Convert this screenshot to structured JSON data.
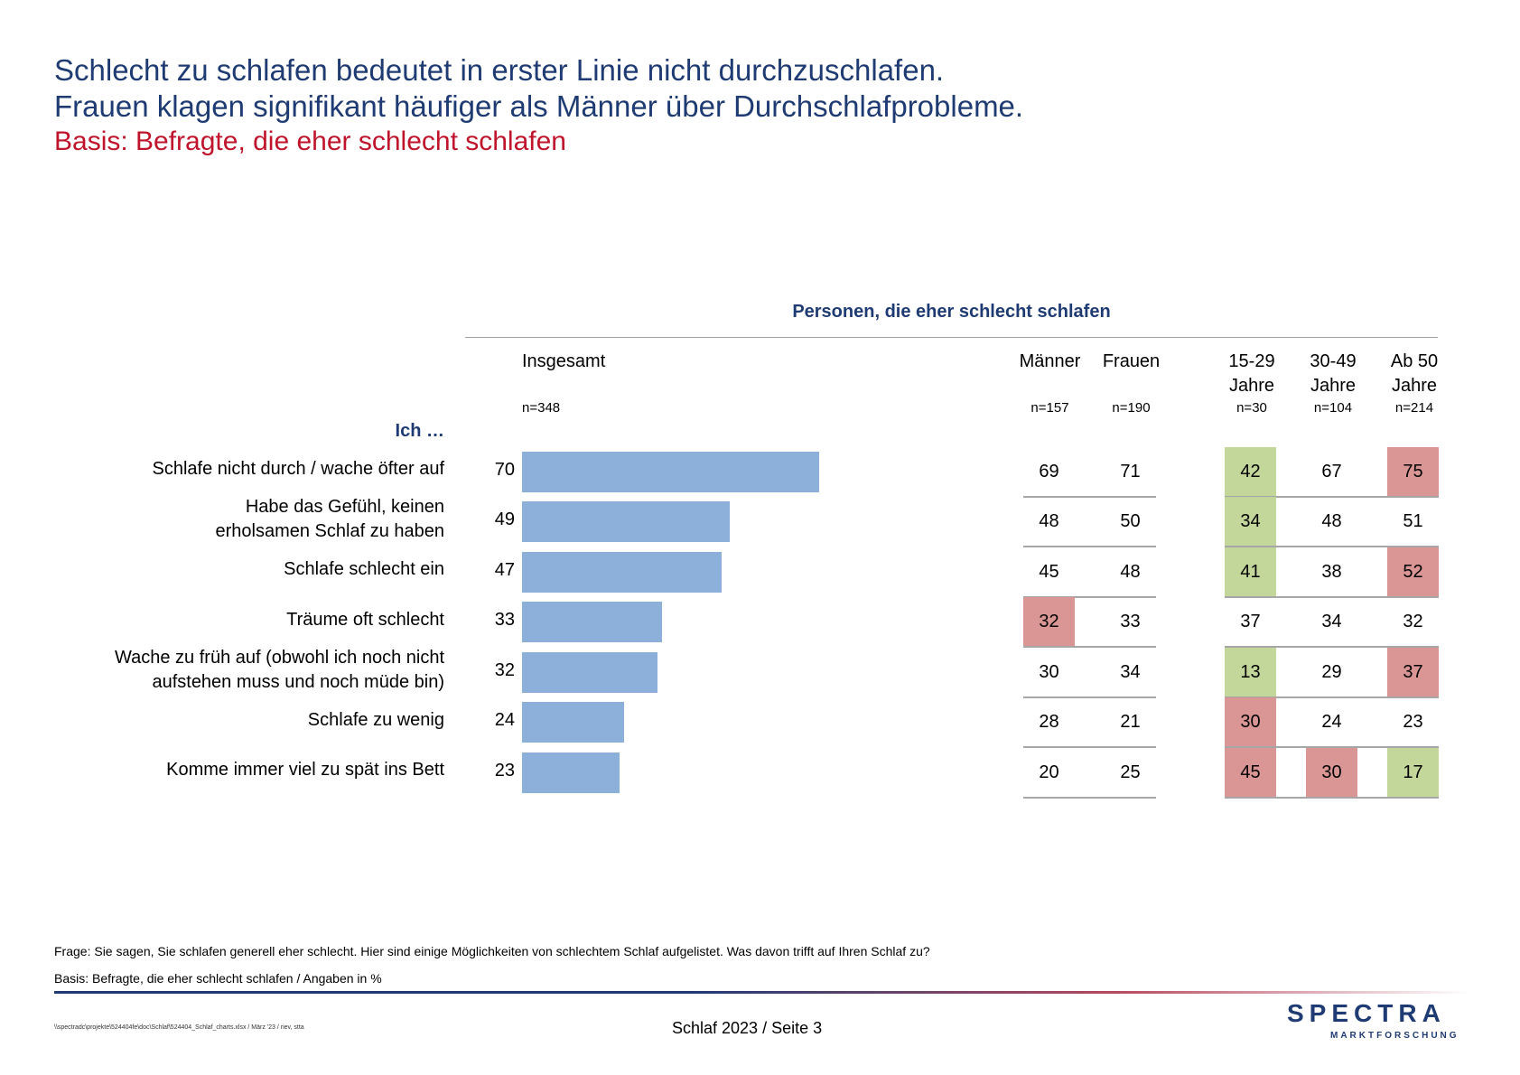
{
  "header": {
    "line1": "Schlecht zu schlafen bedeutet in erster Linie nicht durchzuschlafen.",
    "line2": "Frauen klagen signifikant häufiger als Männer über Durchschlafprobleme.",
    "basis": "Basis: Befragte, die eher schlecht schlafen"
  },
  "table": {
    "section_title": "Personen, die eher schlecht schlafen",
    "row_header": "Ich …",
    "columns": [
      {
        "label1": "Insgesamt",
        "label2": "",
        "n": "n=348"
      },
      {
        "label1": "Männer",
        "label2": "",
        "n": "n=157"
      },
      {
        "label1": "Frauen",
        "label2": "",
        "n": "n=190"
      },
      {
        "label1": "15-29",
        "label2": "Jahre",
        "n": "n=30"
      },
      {
        "label1": "30-49",
        "label2": "Jahre",
        "n": "n=104"
      },
      {
        "label1": "Ab 50",
        "label2": "Jahre",
        "n": "n=214"
      }
    ],
    "rows": [
      {
        "label": [
          "Schlafe nicht durch / wache öfter auf"
        ],
        "total": 70,
        "cells": [
          {
            "v": "69",
            "s": ""
          },
          {
            "v": "71",
            "s": ""
          },
          {
            "v": "42",
            "s": "green"
          },
          {
            "v": "67",
            "s": ""
          },
          {
            "v": "75",
            "s": "red"
          }
        ]
      },
      {
        "label": [
          "Habe das Gefühl, keinen",
          "erholsamen Schlaf zu haben"
        ],
        "total": 49,
        "cells": [
          {
            "v": "48",
            "s": ""
          },
          {
            "v": "50",
            "s": ""
          },
          {
            "v": "34",
            "s": "green"
          },
          {
            "v": "48",
            "s": ""
          },
          {
            "v": "51",
            "s": ""
          }
        ]
      },
      {
        "label": [
          "Schlafe schlecht ein"
        ],
        "total": 47,
        "cells": [
          {
            "v": "45",
            "s": ""
          },
          {
            "v": "48",
            "s": ""
          },
          {
            "v": "41",
            "s": "green"
          },
          {
            "v": "38",
            "s": ""
          },
          {
            "v": "52",
            "s": "red"
          }
        ]
      },
      {
        "label": [
          "Träume oft schlecht"
        ],
        "total": 33,
        "cells": [
          {
            "v": "32",
            "s": "red"
          },
          {
            "v": "33",
            "s": ""
          },
          {
            "v": "37",
            "s": ""
          },
          {
            "v": "34",
            "s": ""
          },
          {
            "v": "32",
            "s": ""
          }
        ]
      },
      {
        "label": [
          "Wache zu früh auf (obwohl ich noch nicht",
          "aufstehen muss und noch müde bin)"
        ],
        "total": 32,
        "cells": [
          {
            "v": "30",
            "s": ""
          },
          {
            "v": "34",
            "s": ""
          },
          {
            "v": "13",
            "s": "green"
          },
          {
            "v": "29",
            "s": ""
          },
          {
            "v": "37",
            "s": "red"
          }
        ]
      },
      {
        "label": [
          "Schlafe zu wenig"
        ],
        "total": 24,
        "cells": [
          {
            "v": "28",
            "s": ""
          },
          {
            "v": "21",
            "s": ""
          },
          {
            "v": "30",
            "s": "red"
          },
          {
            "v": "24",
            "s": ""
          },
          {
            "v": "23",
            "s": ""
          }
        ]
      },
      {
        "label": [
          "Komme immer viel zu spät ins Bett"
        ],
        "total": 23,
        "cells": [
          {
            "v": "20",
            "s": ""
          },
          {
            "v": "25",
            "s": ""
          },
          {
            "v": "45",
            "s": "red"
          },
          {
            "v": "30",
            "s": "red"
          },
          {
            "v": "17",
            "s": "green"
          }
        ]
      }
    ]
  },
  "chart_data": {
    "type": "bar",
    "title": "Personen, die eher schlecht schlafen",
    "categories": [
      "Schlafe nicht durch / wache öfter auf",
      "Habe das Gefühl, keinen erholsamen Schlaf zu haben",
      "Schlafe schlecht ein",
      "Träume oft schlecht",
      "Wache zu früh auf (obwohl ich noch nicht aufstehen muss und noch müde bin)",
      "Schlafe zu wenig",
      "Komme immer viel zu spät ins Bett"
    ],
    "series": [
      {
        "name": "Insgesamt",
        "values": [
          70,
          49,
          47,
          33,
          32,
          24,
          23
        ]
      },
      {
        "name": "Männer",
        "values": [
          69,
          48,
          45,
          32,
          30,
          28,
          20
        ]
      },
      {
        "name": "Frauen",
        "values": [
          71,
          50,
          48,
          33,
          34,
          21,
          25
        ]
      },
      {
        "name": "15-29 Jahre",
        "values": [
          42,
          34,
          41,
          37,
          13,
          30,
          45
        ]
      },
      {
        "name": "30-49 Jahre",
        "values": [
          67,
          48,
          38,
          34,
          29,
          24,
          30
        ]
      },
      {
        "name": "Ab 50 Jahre",
        "values": [
          75,
          51,
          52,
          32,
          37,
          23,
          17
        ]
      }
    ],
    "xlim": [
      0,
      100
    ],
    "bar_color": "#8db0da",
    "highlight_colors": {
      "significantly_higher": "#d99694",
      "significantly_lower": "#c4d79b"
    }
  },
  "footer": {
    "question": "Frage: Sie sagen, Sie schlafen generell eher schlecht. Hier sind einige Möglichkeiten von schlechtem Schlaf aufgelistet. Was davon trifft auf Ihren Schlaf zu?",
    "basis": "Basis: Befragte, die eher schlecht schlafen / Angaben in %",
    "path": "\\\\spectradc\\projekte\\524404fe\\doc\\Schlaf\\524404_Schlaf_charts.xlsx / März '23 / riev, stta",
    "page": "Schlaf 2023  /  Seite  3",
    "logo_main": "SPECTRA",
    "logo_sub": "MARKTFORSCHUNG"
  }
}
